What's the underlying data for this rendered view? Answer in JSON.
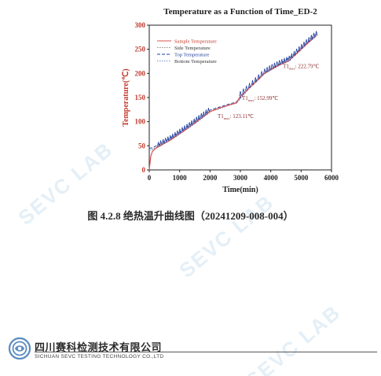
{
  "chart_data": {
    "type": "line",
    "title": "Temperature as a Function of Time_ED-2",
    "xlabel": "Time(min)",
    "ylabel": "Temperature(℃)",
    "xlim": [
      0,
      6000
    ],
    "ylim": [
      0,
      300
    ],
    "x_ticks": [
      "0",
      "1000",
      "2000",
      "3000",
      "4000",
      "5000",
      "6000"
    ],
    "y_ticks": [
      "0",
      "50",
      "100",
      "150",
      "200",
      "250",
      "300"
    ],
    "grid": false,
    "legend_position": "top-left",
    "series": [
      {
        "name": "Sample Temperature",
        "color": "#d9534f",
        "style": "solid",
        "x": [
          0,
          50,
          100,
          200,
          400,
          700,
          1000,
          1300,
          1600,
          1900,
          2000,
          2300,
          2600,
          2800,
          2870,
          3000,
          3300,
          3600,
          3750,
          3800,
          4000,
          4300,
          4600,
          4700,
          4800,
          5000,
          5200,
          5400,
          5500
        ],
        "y": [
          0,
          28,
          38,
          44,
          52,
          62,
          75,
          88,
          102,
          116,
          121,
          128,
          134,
          138,
          139,
          153,
          170,
          188,
          198,
          200,
          208,
          218,
          226,
          232,
          238,
          250,
          262,
          273,
          278
        ]
      },
      {
        "name": "Side Temperature",
        "color": "#888888",
        "style": "dotted",
        "x": [
          0,
          100,
          400,
          1000,
          1600,
          2000,
          2600,
          2870,
          3300,
          3800,
          4300,
          4800,
          5200,
          5500
        ],
        "y": [
          42,
          43,
          52,
          75,
          102,
          121,
          134,
          139,
          170,
          200,
          218,
          238,
          262,
          278
        ]
      },
      {
        "name": "Top Temperature",
        "color": "#1f3f9e",
        "style": "dashed",
        "x": [
          0,
          100,
          400,
          1000,
          1600,
          2000,
          2600,
          2870,
          3300,
          3800,
          4300,
          4800,
          5200,
          5500
        ],
        "y": [
          45,
          46,
          55,
          78,
          105,
          124,
          136,
          141,
          172,
          202,
          220,
          240,
          264,
          282
        ]
      },
      {
        "name": "Bottom Temperature",
        "color": "#6f8fd0",
        "style": "dotted",
        "x": [
          0,
          100,
          400,
          1000,
          1600,
          2000,
          2600,
          2870,
          3300,
          3800,
          4300,
          4800,
          5200,
          5500
        ],
        "y": [
          40,
          42,
          50,
          74,
          100,
          120,
          133,
          138,
          169,
          199,
          217,
          237,
          261,
          277
        ]
      }
    ],
    "spikes": {
      "x_ranges": [
        [
          300,
          1950
        ],
        [
          3000,
          3700
        ],
        [
          3800,
          5500
        ]
      ],
      "count_ranges": [
        22,
        8,
        22
      ],
      "height": 10
    },
    "annotations": [
      {
        "label": "T1",
        "sub": "max",
        "value": "123.11℃",
        "x": 2250,
        "y": 108
      },
      {
        "label": "T1",
        "sub": "max",
        "value": "152.99℃",
        "x": 3050,
        "y": 145
      },
      {
        "label": "T1",
        "sub": "max",
        "value": "222.79℃",
        "x": 4400,
        "y": 211
      }
    ]
  },
  "caption": "图 4.2.8  绝热温升曲线图（20241209-008-004）",
  "watermark": "SEVC LAB",
  "footer": {
    "company_cn": "四川赛科检测技术有限公司",
    "company_en": "SICHUAN SEVC TESTING TECHNOLOGY CO.,LTD",
    "logo_color": "#5b8bc0"
  }
}
